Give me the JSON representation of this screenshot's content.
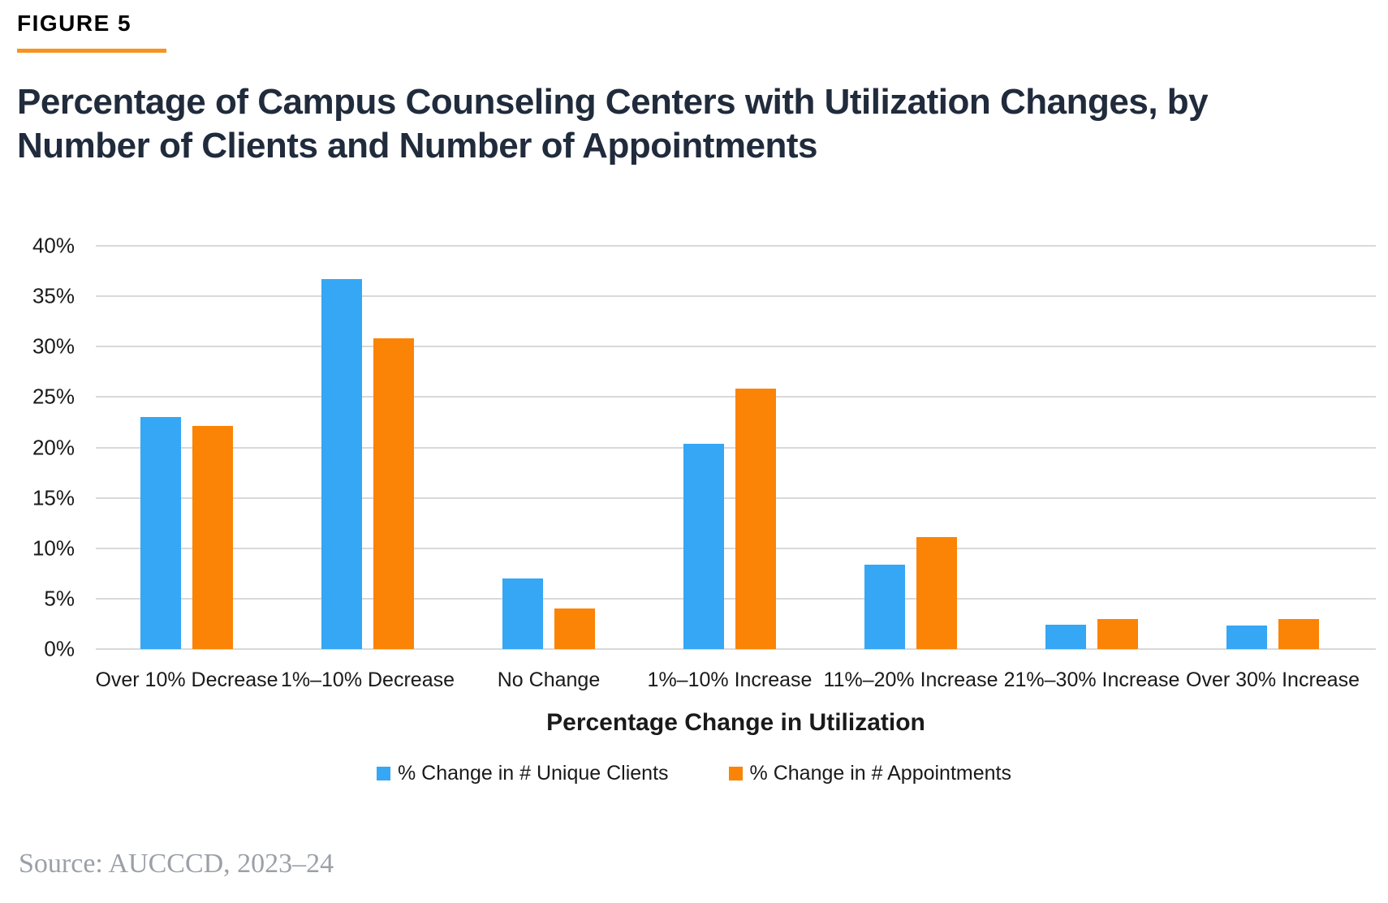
{
  "figure": {
    "label": "FIGURE 5",
    "title": "Percentage of Campus Counseling Centers with Utilization Changes, by Number of Clients and Number of Appointments"
  },
  "source": "Source: AUCCCD, 2023–24",
  "colors": {
    "clients_blue": "#35A7F5",
    "appointments_orange": "#FB8306",
    "figure_rule_orange": "#F7941E",
    "title_navy": "#202B3C",
    "gridline_gray": "#D9D9D9",
    "axis_text": "#1A1A1A",
    "source_gray": "#9BA0A8"
  },
  "chart_data": {
    "type": "bar",
    "title": "",
    "xlabel": "Percentage Change in Utilization",
    "ylabel": "",
    "ylim": [
      0,
      40
    ],
    "ytick_step": 5,
    "yticks": [
      "0%",
      "5%",
      "10%",
      "15%",
      "20%",
      "25%",
      "30%",
      "35%",
      "40%"
    ],
    "grid": true,
    "legend_position": "bottom",
    "categories": [
      "Over 10% Decrease",
      "1%–10% Decrease",
      "No Change",
      "1%–10% Increase",
      "11%–20% Increase",
      "21%–30% Increase",
      "Over 30% Increase"
    ],
    "series": [
      {
        "name": "% Change in # Unique Clients",
        "color": "#35A7F5",
        "values": [
          23.0,
          36.7,
          7.0,
          20.4,
          8.4,
          2.4,
          2.3
        ]
      },
      {
        "name": "% Change in # Appointments",
        "color": "#FB8306",
        "values": [
          22.1,
          30.8,
          4.0,
          25.8,
          11.1,
          3.0,
          3.0
        ]
      }
    ]
  }
}
